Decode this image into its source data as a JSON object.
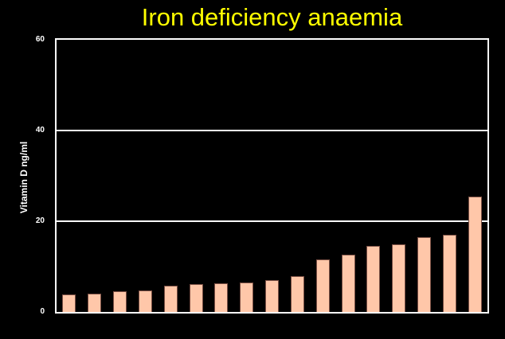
{
  "page": {
    "background_color": "#000000"
  },
  "chart_data": {
    "type": "bar",
    "title": "Iron deficiency anaemia",
    "xlabel": "",
    "ylabel": "Vitamin D ng/ml",
    "ylim": [
      0,
      60
    ],
    "y_ticks": [
      0,
      20,
      40,
      60
    ],
    "gridlines_at": [
      20,
      40
    ],
    "grid": true,
    "legend_position": "none",
    "x_tick_labels_visible": false,
    "n_bars": 17,
    "values": [
      3.9,
      4.0,
      4.6,
      4.8,
      5.8,
      6.2,
      6.4,
      6.5,
      7.0,
      7.9,
      11.6,
      12.7,
      14.5,
      15.0,
      16.5,
      17.0,
      25.4
    ],
    "colors": {
      "title": "#FFFF00",
      "bar_fill": "#FFC7A9",
      "bar_border": "#7A4F44",
      "axis_frame": "#FFFFFF",
      "gridline": "#FFFFFF",
      "tick_label": "#FFFFFF",
      "background": "#000000"
    }
  }
}
